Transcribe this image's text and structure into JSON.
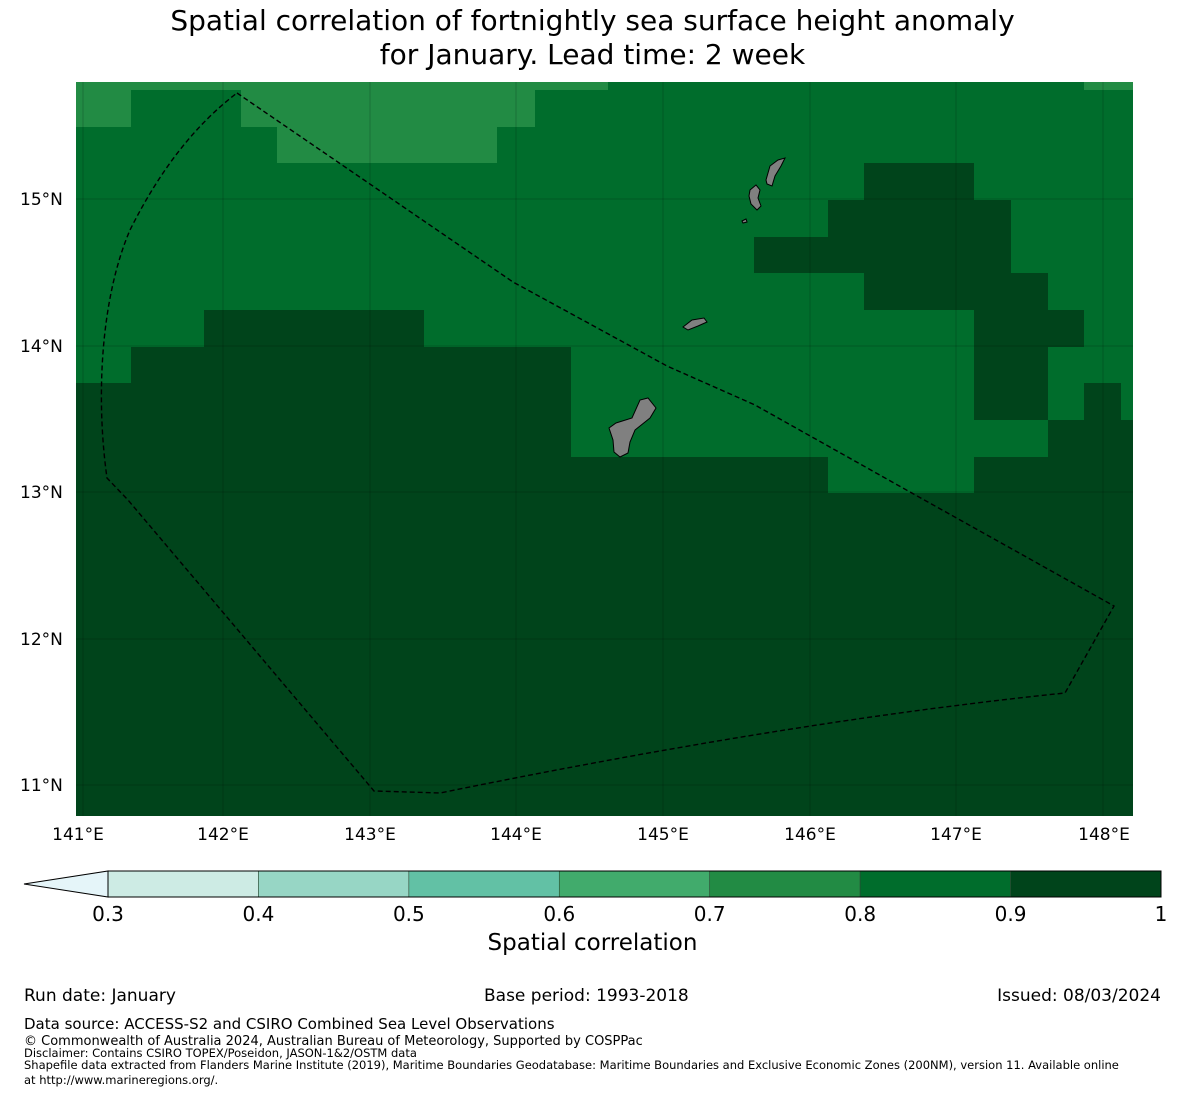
{
  "title_line1": "Spatial correlation of fortnightly sea surface height anomaly",
  "title_line2": "for January. Lead time: 2 week",
  "map": {
    "lon_ticks": [
      "141°E",
      "142°E",
      "143°E",
      "144°E",
      "145°E",
      "146°E",
      "147°E",
      "148°E"
    ],
    "lat_ticks": [
      "15°N",
      "14°N",
      "13°N",
      "12°N",
      "11°N"
    ],
    "colors": {
      "c08": "#228b44",
      "c09": "#006d2c",
      "c10": "#00441b",
      "land": "#808080"
    },
    "gridlines": "on"
  },
  "colorbar": {
    "label": "Spatial correlation",
    "ticks": [
      "0.3",
      "0.4",
      "0.5",
      "0.6",
      "0.7",
      "0.8",
      "0.9",
      "1"
    ],
    "colors": [
      "#cdebe4",
      "#97d6c5",
      "#62c1a5",
      "#41ab6c",
      "#228b44",
      "#006d2c",
      "#00441b"
    ],
    "extend_color": "#e5f5f9"
  },
  "footer": {
    "run_date": "Run date: January",
    "base_period": "Base period: 1993-2018",
    "issued": "Issued: 08/03/2024",
    "data_source": "Data source: ACCESS-S2 and CSIRO Combined Sea Level Observations",
    "copyright": "© Commonwealth of Australia 2024, Australian Bureau of Meteorology, Supported by COSPPac",
    "disclaimer": "Disclaimer: Contains CSIRO TOPEX/Poseidon, JASON-1&2/OSTM data",
    "shapefile_line1": "Shapefile data extracted from Flanders Marine Institute (2019), Maritime Boundaries Geodatabase: Maritime Boundaries and Exclusive Economic Zones (200NM), version 11. Available online",
    "shapefile_line2": "at http://www.marineregions.org/."
  }
}
